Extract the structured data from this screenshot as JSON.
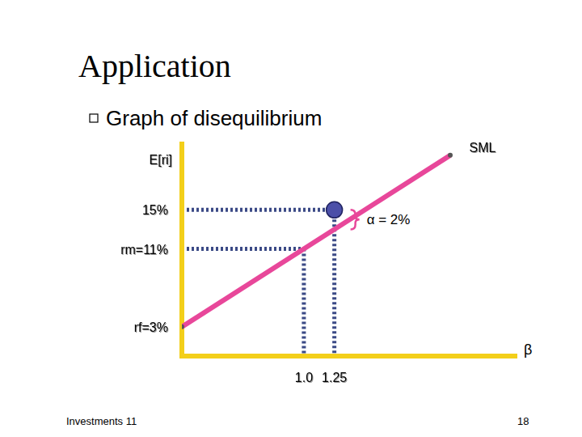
{
  "slide": {
    "title": "Application",
    "bullet": "Graph of disequilibrium",
    "footer": "Investments 11",
    "page_number": 18
  },
  "chart_data": {
    "type": "line",
    "y_label": "E[ri]",
    "x_label": "β",
    "xlim": [
      0,
      2.75
    ],
    "ylim": [
      0,
      22
    ],
    "xticks": [
      {
        "value": 1,
        "label": "1.0"
      },
      1.25
    ],
    "yticks": [
      {
        "value": 3,
        "label": "rf=3%"
      },
      {
        "value": 11,
        "label": "rm=11%"
      },
      {
        "value": 15,
        "label": "15%"
      }
    ],
    "grid": false,
    "series": [
      {
        "name": "SML",
        "type": "line",
        "color": "#e8479a",
        "x": [
          0,
          2.2
        ],
        "values": [
          3,
          20.6
        ]
      },
      {
        "type": "scatter",
        "color": "#4b4fa8",
        "marker": "circle",
        "x": [
          1.25
        ],
        "values": [
          15
        ]
      }
    ],
    "guides": [
      {
        "x": 1,
        "y": 11
      },
      {
        "x": 1.25,
        "y": 15
      }
    ],
    "annotations": [
      {
        "text": "α = 2%",
        "x": 1.25,
        "y": [
          13,
          15
        ]
      }
    ]
  }
}
